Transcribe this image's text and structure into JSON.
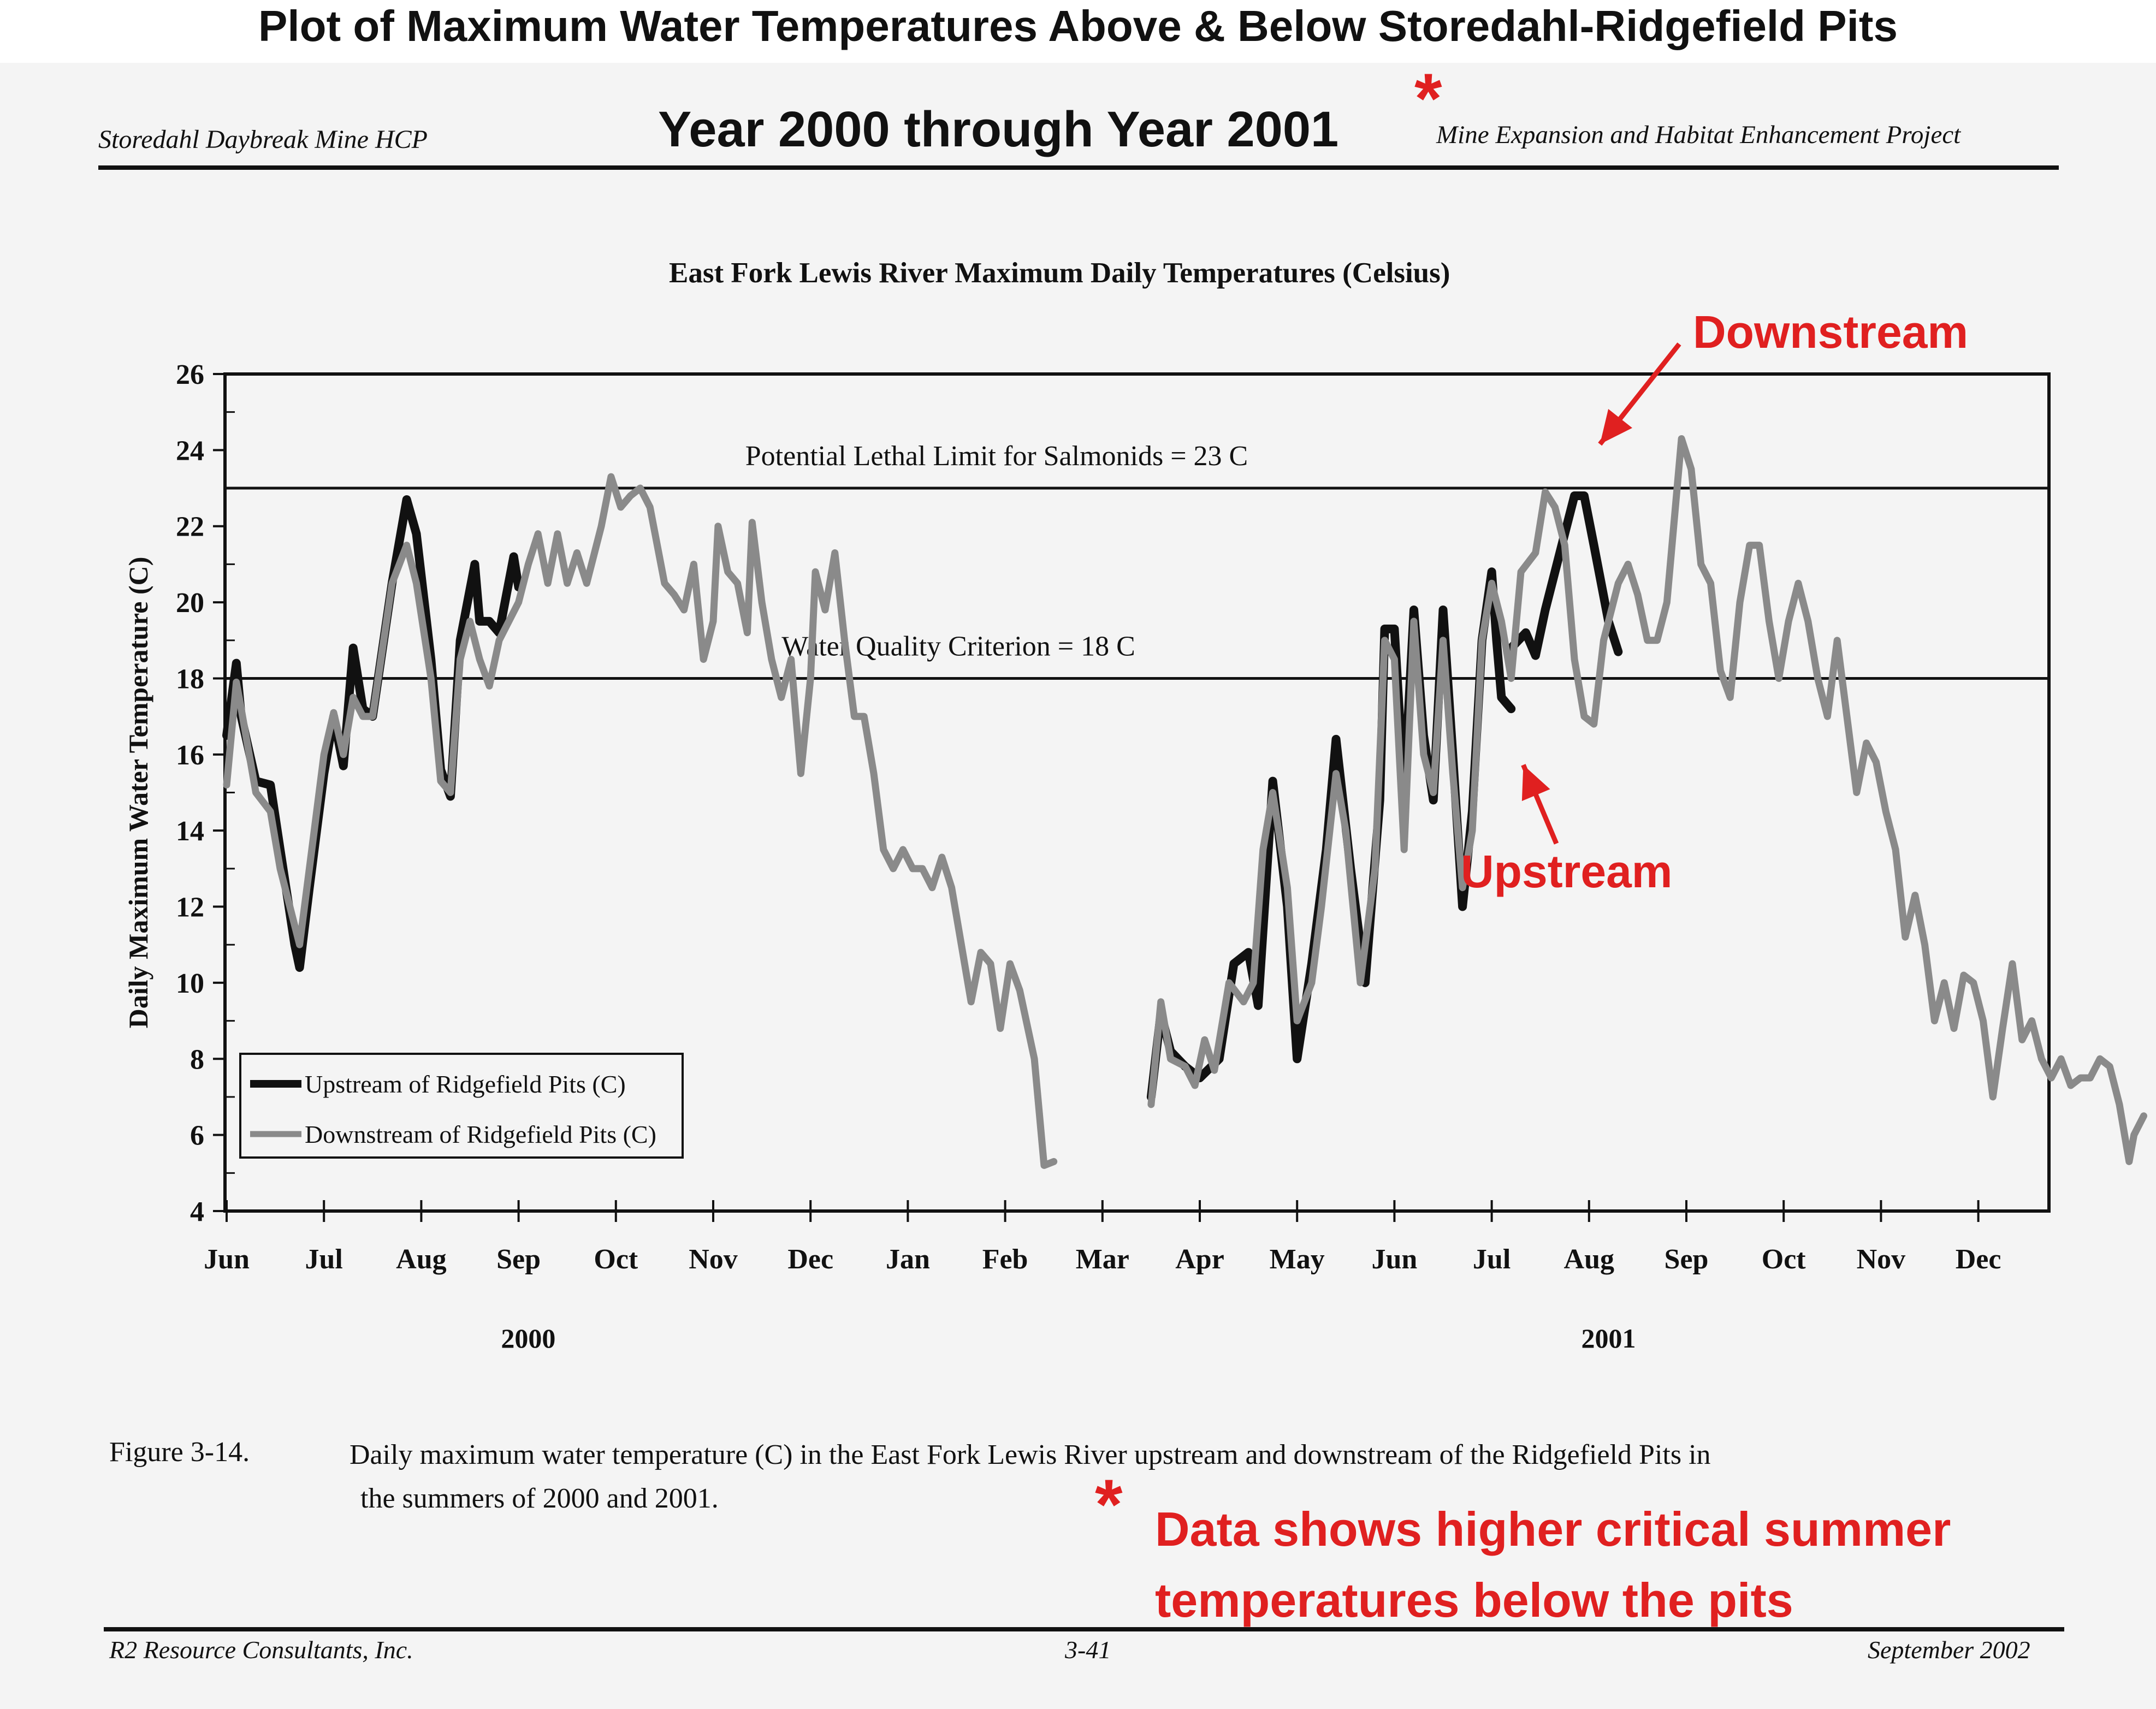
{
  "page": {
    "main_title": "Plot of Maximum Water Temperatures Above & Below Storedahl-Ridgefield Pits",
    "header_left": "Storedahl Daybreak Mine HCP",
    "header_center": "Year 2000 through Year 2001",
    "header_right": "Mine Expansion and Habitat Enhancement Project",
    "asterisk": "*",
    "figure_label": "Figure 3-14.",
    "caption_line1": "Daily maximum water temperature (C) in the East Fork Lewis River upstream and downstream of the Ridgefield Pits in",
    "caption_line2": "the summers of 2000 and 2001.",
    "annotation_note_line1": "Data shows higher critical summer",
    "annotation_note_line2": "temperatures below the pits",
    "footer_left": "R2 Resource Consultants, Inc.",
    "footer_center": "3-41",
    "footer_right": "September 2002",
    "accent_color": "#e02020"
  },
  "chart_data": {
    "type": "line",
    "title": "East Fork Lewis River Maximum Daily Temperatures (Celsius)",
    "xlabel": "",
    "ylabel": "Daily Maximum Water Temperature (C)",
    "ylim": [
      4,
      26
    ],
    "yticks": [
      4,
      6,
      8,
      10,
      12,
      14,
      16,
      18,
      20,
      22,
      24,
      26
    ],
    "x_unit": "months since Jun 1, 2000",
    "xlim": [
      0,
      19.7
    ],
    "xticks": [
      "Jun",
      "Jul",
      "Aug",
      "Sep",
      "Oct",
      "Nov",
      "Dec",
      "Jan",
      "Feb",
      "Mar",
      "Apr",
      "May",
      "Jun",
      "Jul",
      "Aug",
      "Sep",
      "Oct",
      "Nov",
      "Dec"
    ],
    "year_labels": [
      {
        "label": "2000",
        "at_month": 3.1
      },
      {
        "label": "2001",
        "at_month": 14.2
      }
    ],
    "grid": false,
    "legend": {
      "placement": "bottom-left",
      "entries": [
        "Upstream of Ridgefield Pits (C)",
        "Downstream of Ridgefield Pits (C)"
      ]
    },
    "reference_lines": [
      {
        "value": 23,
        "label": "Potential Lethal Limit for Salmonids = 23 C"
      },
      {
        "value": 18,
        "label": "Water Quality Criterion  = 18 C"
      }
    ],
    "annotations": [
      {
        "label": "Downstream",
        "points_to": {
          "x": 14.0,
          "y": 24.3
        }
      },
      {
        "label": "Upstream",
        "points_to": {
          "x": 13.1,
          "y": 16.3
        }
      }
    ],
    "series": [
      {
        "name": "Upstream of Ridgefield Pits (C)",
        "color": "#111111",
        "segments": [
          [
            [
              0.0,
              16.5
            ],
            [
              0.1,
              18.4
            ],
            [
              0.15,
              17.0
            ],
            [
              0.3,
              15.3
            ],
            [
              0.45,
              15.2
            ],
            [
              0.55,
              13.5
            ],
            [
              0.7,
              11.0
            ],
            [
              0.75,
              10.4
            ],
            [
              0.85,
              12.5
            ],
            [
              1.0,
              15.5
            ],
            [
              1.1,
              17.0
            ],
            [
              1.2,
              15.7
            ],
            [
              1.3,
              18.8
            ],
            [
              1.4,
              17.2
            ],
            [
              1.5,
              17.0
            ],
            [
              1.7,
              20.5
            ],
            [
              1.85,
              22.7
            ],
            [
              1.95,
              21.8
            ],
            [
              2.1,
              18.5
            ],
            [
              2.2,
              15.6
            ],
            [
              2.3,
              14.9
            ],
            [
              2.4,
              19.0
            ],
            [
              2.55,
              21.0
            ],
            [
              2.6,
              19.5
            ],
            [
              2.7,
              19.5
            ],
            [
              2.8,
              19.2
            ],
            [
              2.95,
              21.2
            ],
            [
              3.0,
              20.4
            ]
          ],
          [
            [
              13.2,
              18.8
            ],
            [
              13.35,
              19.2
            ],
            [
              13.45,
              18.6
            ],
            [
              13.55,
              19.8
            ],
            [
              13.7,
              21.3
            ],
            [
              13.85,
              22.8
            ],
            [
              13.95,
              22.8
            ],
            [
              14.05,
              21.5
            ],
            [
              14.2,
              19.5
            ],
            [
              14.3,
              18.7
            ]
          ],
          [
            [
              9.5,
              7.0
            ],
            [
              9.6,
              9.2
            ],
            [
              9.7,
              8.2
            ],
            [
              9.85,
              7.8
            ],
            [
              10.0,
              7.5
            ],
            [
              10.2,
              8.0
            ],
            [
              10.35,
              10.5
            ],
            [
              10.5,
              10.8
            ],
            [
              10.6,
              9.4
            ],
            [
              10.75,
              15.3
            ],
            [
              10.9,
              12.0
            ],
            [
              11.0,
              8.0
            ],
            [
              11.15,
              10.5
            ],
            [
              11.3,
              13.5
            ],
            [
              11.4,
              16.4
            ],
            [
              11.55,
              13.0
            ],
            [
              11.7,
              10.0
            ],
            [
              11.85,
              14.8
            ],
            [
              11.9,
              19.3
            ],
            [
              12.0,
              19.3
            ],
            [
              12.1,
              15.0
            ],
            [
              12.2,
              19.8
            ],
            [
              12.3,
              16.5
            ],
            [
              12.4,
              14.8
            ],
            [
              12.5,
              19.8
            ],
            [
              12.6,
              16.0
            ],
            [
              12.7,
              12.0
            ],
            [
              12.8,
              14.5
            ],
            [
              12.9,
              19.0
            ],
            [
              13.0,
              20.8
            ],
            [
              13.05,
              19.0
            ],
            [
              13.1,
              17.5
            ],
            [
              13.2,
              17.2
            ]
          ]
        ]
      },
      {
        "name": "Downstream of Ridgefield Pits (C)",
        "color": "#8a8a8a",
        "segments": [
          [
            [
              0.0,
              15.2
            ],
            [
              0.1,
              17.9
            ],
            [
              0.15,
              17.2
            ],
            [
              0.3,
              15.0
            ],
            [
              0.45,
              14.5
            ],
            [
              0.55,
              13.0
            ],
            [
              0.7,
              11.5
            ],
            [
              0.75,
              11.0
            ],
            [
              0.85,
              13.0
            ],
            [
              1.0,
              16.0
            ],
            [
              1.1,
              17.1
            ],
            [
              1.2,
              16.0
            ],
            [
              1.3,
              17.5
            ],
            [
              1.4,
              17.0
            ],
            [
              1.5,
              17.0
            ],
            [
              1.7,
              20.5
            ],
            [
              1.85,
              21.5
            ],
            [
              1.95,
              20.5
            ],
            [
              2.1,
              18.0
            ],
            [
              2.2,
              15.3
            ],
            [
              2.3,
              15.0
            ],
            [
              2.4,
              18.5
            ],
            [
              2.5,
              19.5
            ],
            [
              2.6,
              18.5
            ],
            [
              2.7,
              17.8
            ],
            [
              2.8,
              19.0
            ],
            [
              2.9,
              19.5
            ],
            [
              3.0,
              20.0
            ],
            [
              3.1,
              21.0
            ],
            [
              3.2,
              21.8
            ],
            [
              3.3,
              20.5
            ],
            [
              3.4,
              21.8
            ],
            [
              3.5,
              20.5
            ],
            [
              3.6,
              21.3
            ],
            [
              3.7,
              20.5
            ],
            [
              3.85,
              22.0
            ],
            [
              3.95,
              23.3
            ],
            [
              4.05,
              22.5
            ],
            [
              4.15,
              22.8
            ],
            [
              4.25,
              23.0
            ],
            [
              4.35,
              22.5
            ],
            [
              4.5,
              20.5
            ],
            [
              4.6,
              20.2
            ],
            [
              4.7,
              19.8
            ],
            [
              4.8,
              21.0
            ],
            [
              4.9,
              18.5
            ],
            [
              5.0,
              19.5
            ],
            [
              5.05,
              22.0
            ],
            [
              5.15,
              20.8
            ],
            [
              5.25,
              20.5
            ],
            [
              5.35,
              19.2
            ],
            [
              5.4,
              22.1
            ],
            [
              5.5,
              20.0
            ],
            [
              5.6,
              18.5
            ],
            [
              5.7,
              17.5
            ],
            [
              5.8,
              18.5
            ],
            [
              5.9,
              15.5
            ],
            [
              6.0,
              18.0
            ],
            [
              6.05,
              20.8
            ],
            [
              6.15,
              19.8
            ],
            [
              6.25,
              21.3
            ],
            [
              6.35,
              19.0
            ],
            [
              6.45,
              17.0
            ],
            [
              6.55,
              17.0
            ],
            [
              6.65,
              15.5
            ],
            [
              6.75,
              13.5
            ],
            [
              6.85,
              13.0
            ],
            [
              6.95,
              13.5
            ],
            [
              7.05,
              13.0
            ],
            [
              7.15,
              13.0
            ],
            [
              7.25,
              12.5
            ],
            [
              7.35,
              13.3
            ],
            [
              7.45,
              12.5
            ],
            [
              7.55,
              11.0
            ],
            [
              7.65,
              9.5
            ],
            [
              7.75,
              10.8
            ],
            [
              7.85,
              10.5
            ],
            [
              7.95,
              8.8
            ],
            [
              8.05,
              10.5
            ],
            [
              8.15,
              9.8
            ],
            [
              8.3,
              8.0
            ],
            [
              8.4,
              5.2
            ],
            [
              8.5,
              5.3
            ]
          ],
          [
            [
              9.5,
              6.8
            ],
            [
              9.6,
              9.5
            ],
            [
              9.7,
              8.0
            ],
            [
              9.85,
              7.8
            ],
            [
              9.95,
              7.3
            ],
            [
              10.05,
              8.5
            ],
            [
              10.15,
              7.7
            ],
            [
              10.3,
              10.0
            ],
            [
              10.45,
              9.5
            ],
            [
              10.55,
              10.0
            ],
            [
              10.65,
              13.5
            ],
            [
              10.75,
              15.0
            ],
            [
              10.9,
              12.5
            ],
            [
              11.0,
              9.0
            ],
            [
              11.15,
              10.0
            ],
            [
              11.25,
              12.0
            ],
            [
              11.4,
              15.5
            ],
            [
              11.5,
              14.0
            ],
            [
              11.65,
              10.0
            ],
            [
              11.8,
              13.0
            ],
            [
              11.9,
              19.0
            ],
            [
              12.0,
              18.5
            ],
            [
              12.1,
              13.5
            ],
            [
              12.2,
              19.5
            ],
            [
              12.3,
              16.0
            ],
            [
              12.4,
              15.0
            ],
            [
              12.5,
              19.0
            ],
            [
              12.6,
              15.5
            ],
            [
              12.7,
              12.5
            ],
            [
              12.8,
              14.0
            ],
            [
              12.9,
              19.0
            ],
            [
              13.0,
              20.5
            ],
            [
              13.1,
              19.5
            ],
            [
              13.2,
              18.0
            ],
            [
              13.3,
              20.8
            ],
            [
              13.45,
              21.3
            ],
            [
              13.55,
              22.9
            ],
            [
              13.65,
              22.5
            ],
            [
              13.75,
              21.5
            ],
            [
              13.85,
              18.5
            ],
            [
              13.95,
              17.0
            ],
            [
              14.05,
              16.8
            ],
            [
              14.15,
              19.0
            ],
            [
              14.3,
              20.5
            ],
            [
              14.4,
              21.0
            ],
            [
              14.5,
              20.2
            ],
            [
              14.6,
              19.0
            ],
            [
              14.7,
              19.0
            ],
            [
              14.8,
              20.0
            ],
            [
              14.95,
              24.3
            ],
            [
              15.05,
              23.5
            ],
            [
              15.15,
              21.0
            ],
            [
              15.25,
              20.5
            ],
            [
              15.35,
              18.2
            ],
            [
              15.45,
              17.5
            ],
            [
              15.55,
              20.0
            ],
            [
              15.65,
              21.5
            ],
            [
              15.75,
              21.5
            ],
            [
              15.85,
              19.5
            ],
            [
              15.95,
              18.0
            ],
            [
              16.05,
              19.5
            ],
            [
              16.15,
              20.5
            ],
            [
              16.25,
              19.5
            ],
            [
              16.35,
              18.0
            ],
            [
              16.45,
              17.0
            ],
            [
              16.55,
              19.0
            ],
            [
              16.65,
              17.0
            ],
            [
              16.75,
              15.0
            ],
            [
              16.85,
              16.3
            ],
            [
              16.95,
              15.8
            ],
            [
              17.05,
              14.5
            ],
            [
              17.15,
              13.5
            ],
            [
              17.25,
              11.2
            ],
            [
              17.35,
              12.3
            ],
            [
              17.45,
              11.0
            ],
            [
              17.55,
              9.0
            ],
            [
              17.65,
              10.0
            ],
            [
              17.75,
              8.8
            ],
            [
              17.85,
              10.2
            ],
            [
              17.95,
              10.0
            ],
            [
              18.05,
              9.0
            ],
            [
              18.15,
              7.0
            ],
            [
              18.25,
              8.8
            ],
            [
              18.35,
              10.5
            ],
            [
              18.45,
              8.5
            ],
            [
              18.55,
              9.0
            ],
            [
              18.65,
              8.0
            ],
            [
              18.75,
              7.5
            ],
            [
              18.85,
              8.0
            ],
            [
              18.95,
              7.3
            ],
            [
              19.05,
              7.5
            ],
            [
              19.15,
              7.5
            ],
            [
              19.25,
              8.0
            ],
            [
              19.35,
              7.8
            ],
            [
              19.45,
              6.8
            ],
            [
              19.55,
              5.3
            ],
            [
              19.6,
              6.0
            ],
            [
              19.7,
              6.5
            ]
          ]
        ]
      }
    ]
  }
}
